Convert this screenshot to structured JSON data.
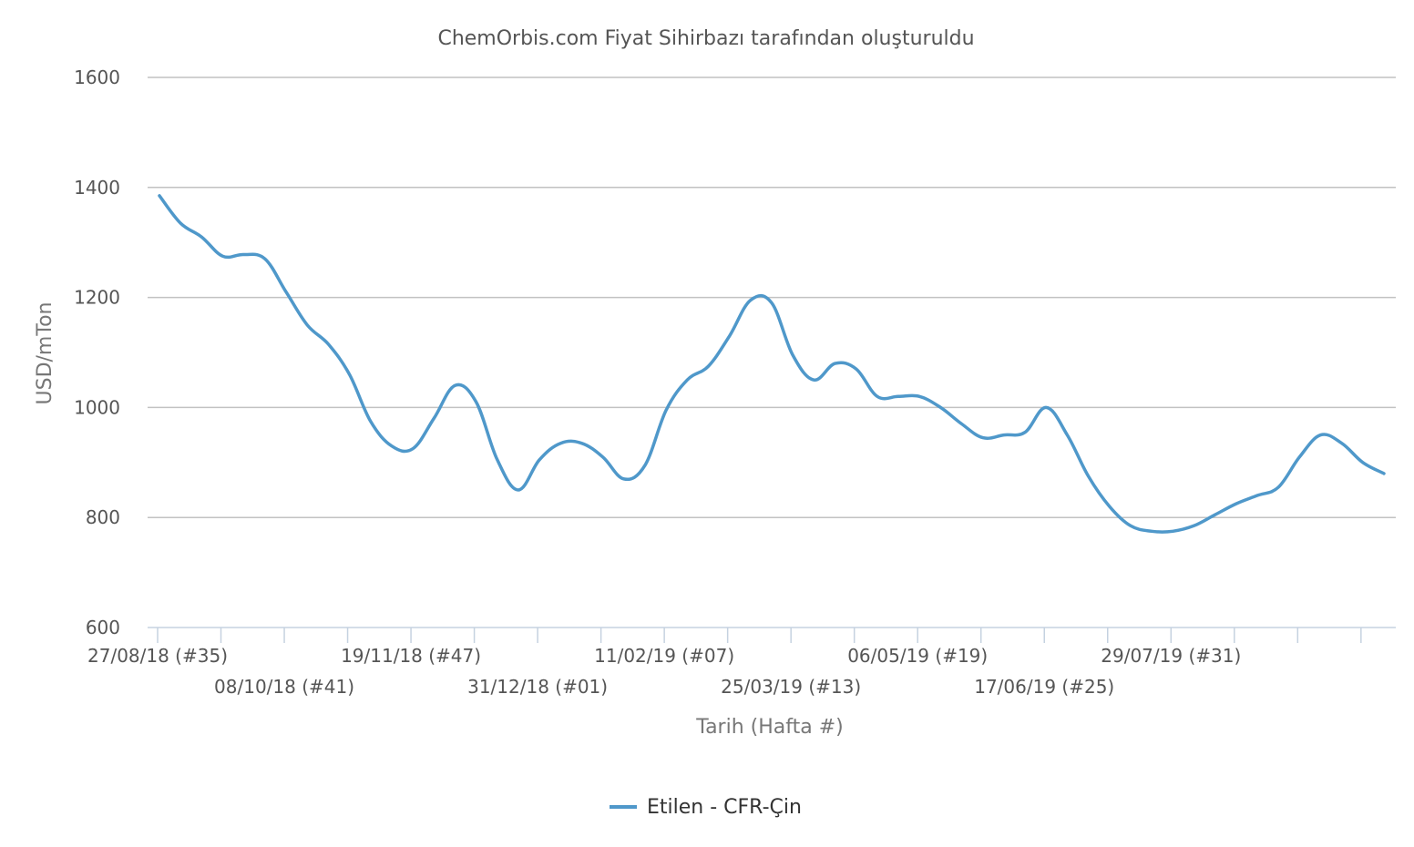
{
  "chart_data": {
    "type": "line",
    "title": "ChemOrbis.com Fiyat Sihirbazı tarafından oluşturuldu",
    "xlabel": "Tarih (Hafta #)",
    "ylabel": "USD/mTon",
    "ylim": [
      600,
      1600
    ],
    "yticks": [
      "600",
      "800",
      "1000",
      "1200",
      "1400",
      "1600"
    ],
    "xtick_labels": [
      "27/08/18 (#35)",
      "08/10/18 (#41)",
      "19/11/18 (#47)",
      "31/12/18 (#01)",
      "11/02/19 (#07)",
      "25/03/19 (#13)",
      "06/05/19 (#19)",
      "17/06/19 (#25)",
      "29/07/19 (#31)"
    ],
    "grid": true,
    "legend_position": "bottom-center",
    "series": [
      {
        "name": "Etilen - CFR-Çin",
        "color": "#4f98ca",
        "values": [
          1385,
          1335,
          1310,
          1275,
          1278,
          1270,
          1210,
          1150,
          1115,
          1060,
          975,
          930,
          925,
          980,
          1040,
          1010,
          905,
          850,
          905,
          935,
          935,
          910,
          870,
          895,
          995,
          1050,
          1075,
          1130,
          1195,
          1190,
          1095,
          1050,
          1080,
          1070,
          1020,
          1020,
          1020,
          1000,
          970,
          945,
          950,
          955,
          1000,
          950,
          875,
          820,
          785,
          775,
          775,
          785,
          805,
          825,
          840,
          855,
          910,
          950,
          935,
          900,
          880
        ]
      }
    ]
  }
}
